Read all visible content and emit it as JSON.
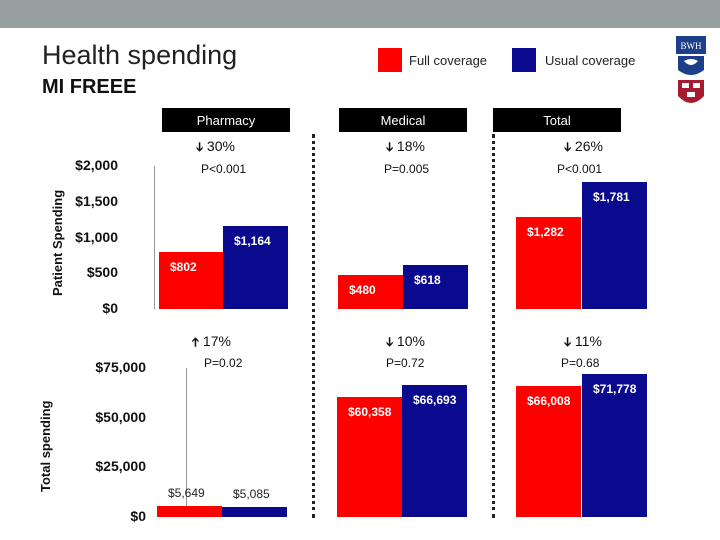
{
  "title": "Health spending",
  "subtitle": "MI FREEE",
  "legend": [
    {
      "label": "Full coverage",
      "color": "#ff0000"
    },
    {
      "label": "Usual coverage",
      "color": "#0a0a8e"
    }
  ],
  "logo_text": "BWH",
  "panels": [
    {
      "header": "Pharmacy",
      "top_stat": {
        "dir": "down",
        "text": "30%"
      },
      "top_p": "P<0.001",
      "bottom_stat": {
        "dir": "up",
        "text": "17%"
      },
      "bottom_p": "P=0.02"
    },
    {
      "header": "Medical",
      "top_stat": {
        "dir": "down",
        "text": "18%"
      },
      "top_p": "P=0.005",
      "bottom_stat": {
        "dir": "down",
        "text": "10%"
      },
      "bottom_p": "P=0.72"
    },
    {
      "header": "Total",
      "top_stat": {
        "dir": "down",
        "text": "26%"
      },
      "top_p": "P<0.001",
      "bottom_stat": {
        "dir": "down",
        "text": "11%"
      },
      "bottom_p": "P=0.68"
    }
  ],
  "chart_data": [
    {
      "type": "bar",
      "ylabel": "Patient Spending",
      "ylim": [
        0,
        2000
      ],
      "yticks": [
        "$0",
        "$500",
        "$1,000",
        "$1,500",
        "$2,000"
      ],
      "categories": [
        "Pharmacy",
        "Medical",
        "Total"
      ],
      "series": [
        {
          "name": "Full coverage",
          "values": [
            802,
            480,
            1282
          ],
          "labels": [
            "$802",
            "$480",
            "$1,282"
          ]
        },
        {
          "name": "Usual coverage",
          "values": [
            1164,
            618,
            1781
          ],
          "labels": [
            "$1,164",
            "$618",
            "$1,781"
          ]
        }
      ]
    },
    {
      "type": "bar",
      "ylabel": "Total spending",
      "ylim": [
        0,
        75000
      ],
      "yticks": [
        "$0",
        "$25,000",
        "$50,000",
        "$75,000"
      ],
      "categories": [
        "Pharmacy",
        "Medical",
        "Total"
      ],
      "series": [
        {
          "name": "Full coverage",
          "values": [
            5649,
            60358,
            66008
          ],
          "labels": [
            "$5,649",
            "$60,358",
            "$66,008"
          ]
        },
        {
          "name": "Usual coverage",
          "values": [
            5085,
            66693,
            71778
          ],
          "labels": [
            "$5,085",
            "$66,693",
            "$71,778"
          ]
        }
      ]
    }
  ]
}
